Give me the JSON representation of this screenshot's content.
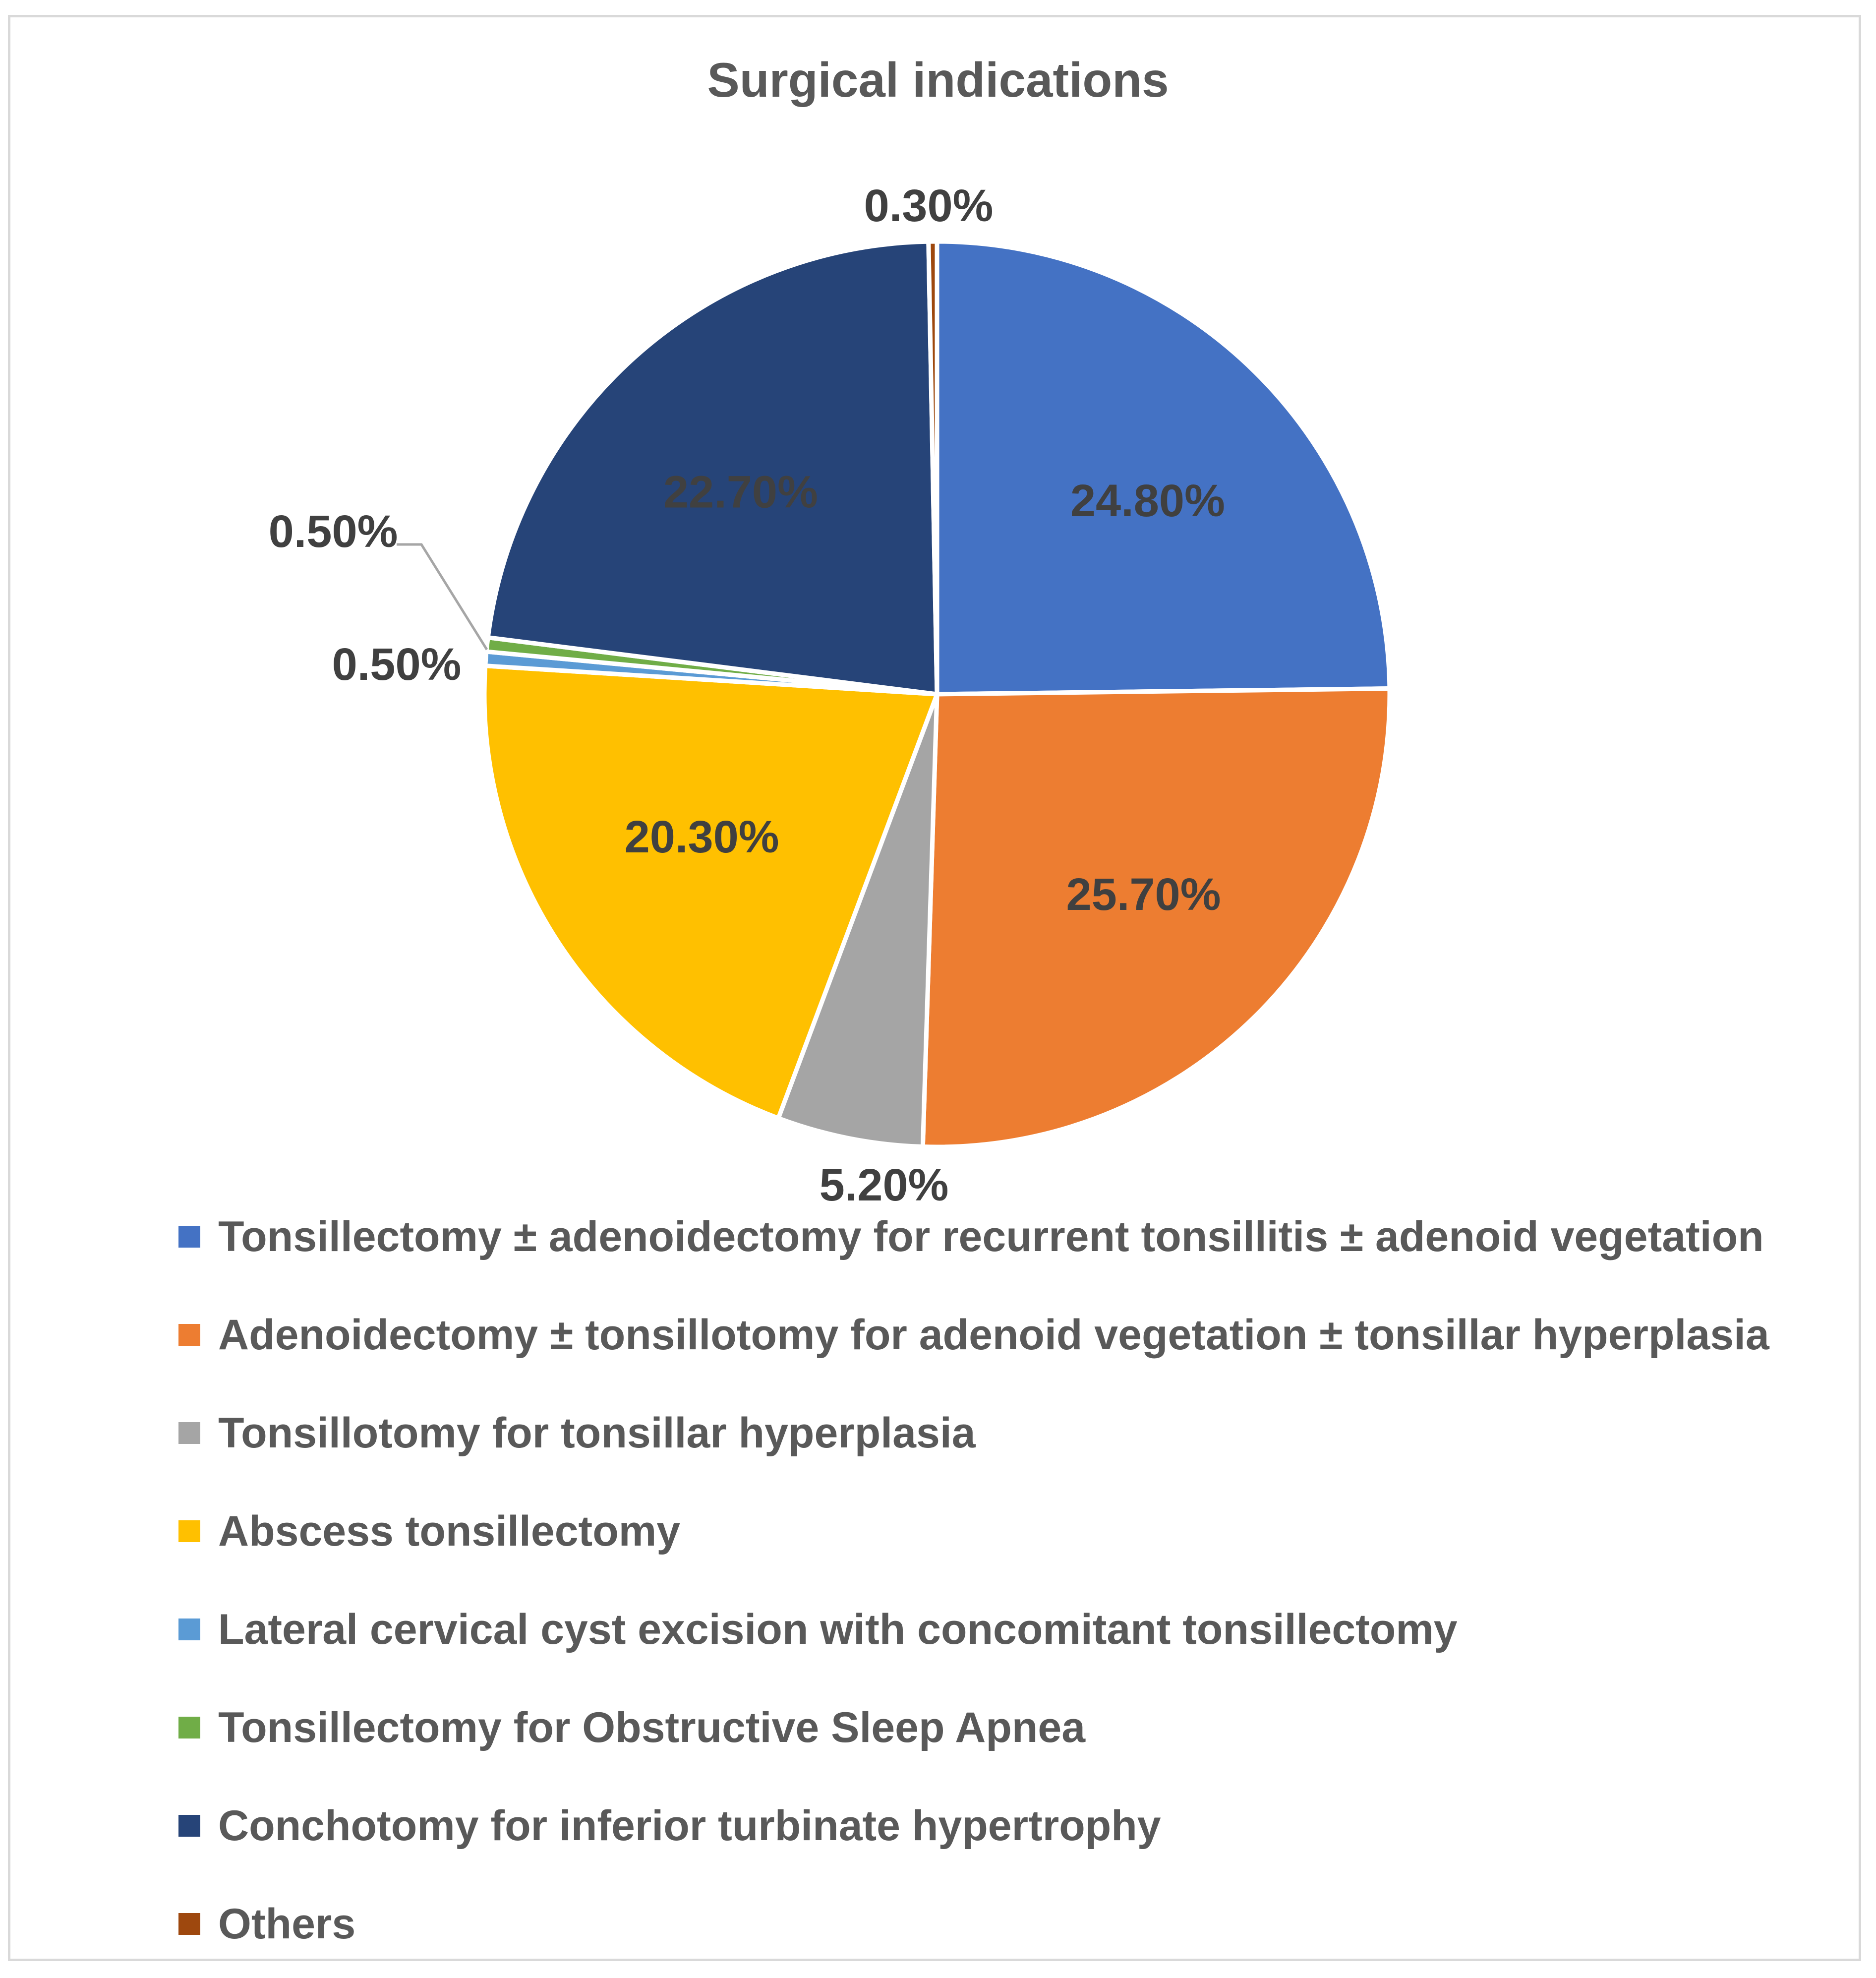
{
  "chart_data": {
    "type": "pie",
    "title": "Surgical indications",
    "start_angle_deg": 0,
    "direction": "clockwise",
    "slices": [
      {
        "name": "Tonsillectomy ± adenoidectomy for recurrent tonsillitis ± adenoid vegetation",
        "value": 24.8,
        "label": "24.80%",
        "color": "#4472C4"
      },
      {
        "name": "Adenoidectomy ± tonsillotomy for adenoid vegetation ± tonsillar hyperplasia",
        "value": 25.7,
        "label": "25.70%",
        "color": "#ED7D31"
      },
      {
        "name": "Tonsillotomy for tonsillar hyperplasia",
        "value": 5.2,
        "label": "5.20%",
        "color": "#A5A5A5"
      },
      {
        "name": "Abscess tonsillectomy",
        "value": 20.3,
        "label": "20.30%",
        "color": "#FFC000"
      },
      {
        "name": "Lateral cervical cyst excision with concomitant tonsillectomy",
        "value": 0.5,
        "label": "0.50%",
        "color": "#5B9BD5"
      },
      {
        "name": "Tonsillectomy for Obstructive Sleep Apnea",
        "value": 0.5,
        "label": "0.50%",
        "color": "#70AD47"
      },
      {
        "name": "Conchotomy for inferior turbinate hypertrophy",
        "value": 22.7,
        "label": "22.70%",
        "color": "#264478"
      },
      {
        "name": "Others",
        "value": 0.3,
        "label": "0.30%",
        "color": "#9E480E"
      }
    ],
    "legend_position": "bottom",
    "slice_border_color": "#ffffff"
  }
}
